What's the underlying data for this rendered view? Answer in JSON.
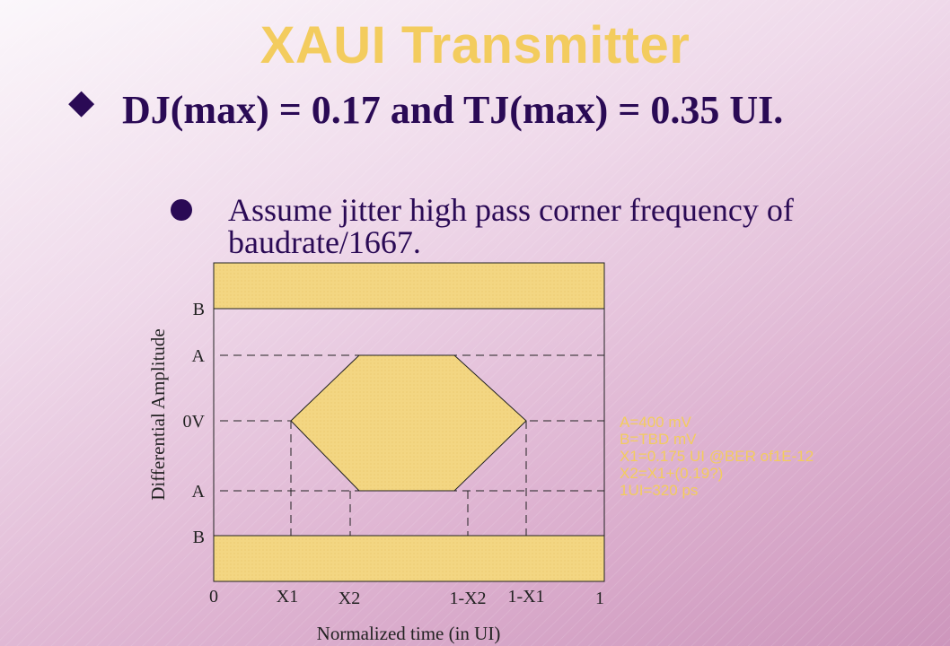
{
  "slide": {
    "title": "XAUI Transmitter",
    "bullet_main": "DJ(max) = 0.17 and TJ(max) = 0.35 UI.",
    "bullet_sub": "Assume jitter high pass corner frequency of baudrate/1667."
  },
  "diagram": {
    "y_axis_label": "Differential Amplitude",
    "x_axis_label": "Normalized time (in UI)",
    "y_ticks": [
      "B",
      "A",
      "0V",
      "A",
      "B"
    ],
    "x_ticks": [
      "0",
      "X1",
      "X2",
      "1-X2",
      "1-X1",
      "1"
    ],
    "colors": {
      "mask_fill": "#f3d682",
      "mask_edge": "#222222",
      "legend_text": "#f3cc5e"
    },
    "legend": [
      "A=400 mV",
      "B=TBD mV",
      "X1=0.175 UI @BER of1E-12",
      "X2=X1+(0.19?)",
      "1UI=320 ps"
    ]
  }
}
